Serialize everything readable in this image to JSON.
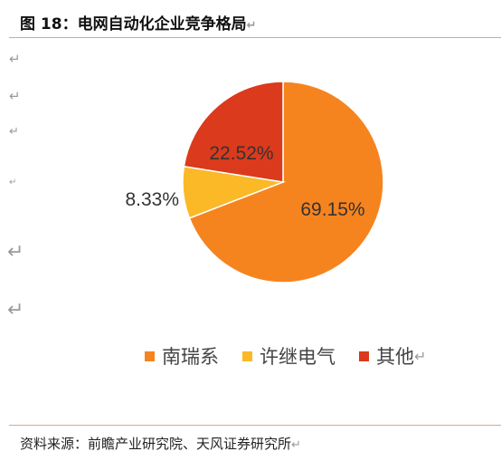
{
  "title": "图 18：电网自动化企业竞争格局",
  "source": "资料来源：前瞻产业研究院、天风证券研究所",
  "colors": {
    "accent_rule": "#e3a778",
    "series": [
      "#f5841f",
      "#fbb927",
      "#db3a1c"
    ]
  },
  "chart_data": {
    "type": "pie",
    "title": "",
    "categories": [
      "南瑞系",
      "许继电气",
      "其他"
    ],
    "values": [
      69.15,
      8.33,
      22.52
    ],
    "data_labels": [
      "69.15%",
      "8.33%",
      "22.52%"
    ],
    "legend_placement": "bottom"
  }
}
